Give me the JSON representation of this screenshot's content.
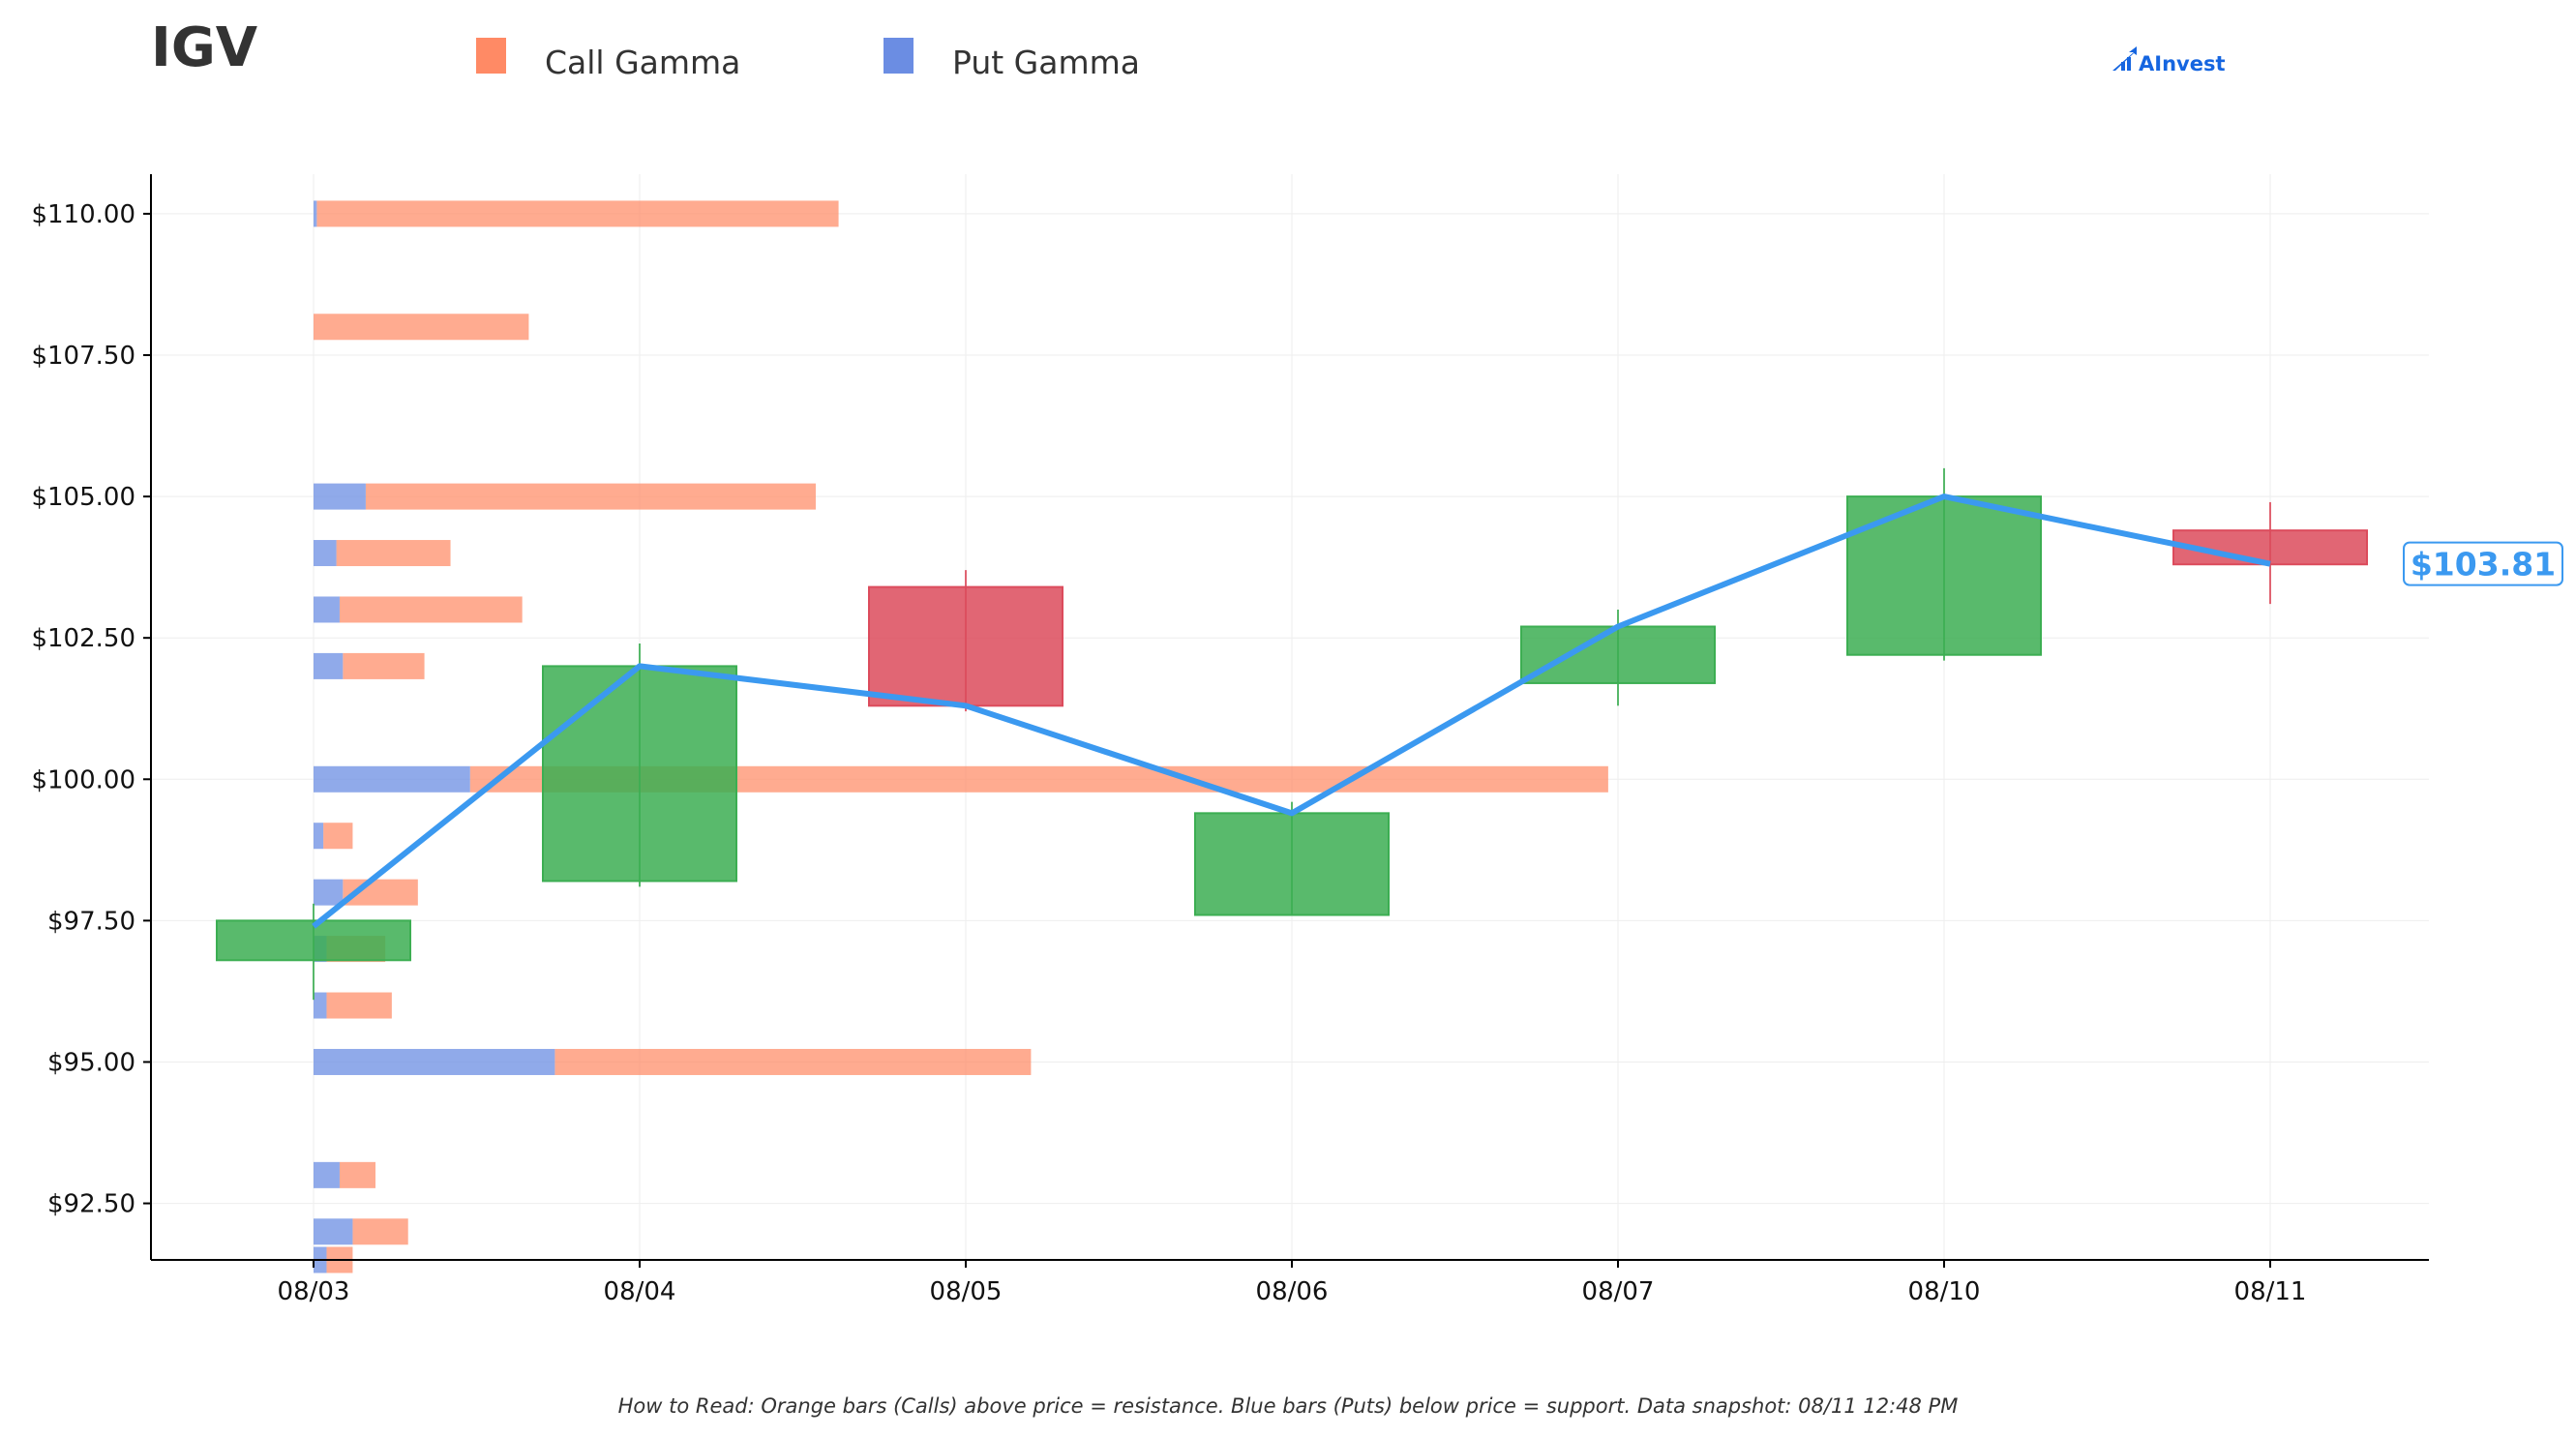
{
  "ticker": "IGV",
  "brand": "AInvest",
  "footer": "How to Read: Orange bars (Calls) above price = resistance. Blue bars (Puts) below price = support. Data snapshot: 08/11 12:48 PM",
  "colors": {
    "call": "#ff8a65",
    "put": "#6b8de3",
    "up": "#3cae52",
    "down": "#dc4b5c",
    "line": "#3b99f0",
    "brand": "#1565e0"
  },
  "chart_data": {
    "type": "candlestick",
    "legend": [
      {
        "label": "Call Gamma",
        "color": "#ff8a65"
      },
      {
        "label": "Put Gamma",
        "color": "#6b8de3"
      }
    ],
    "legend_position": "top",
    "categories": [
      "08/03",
      "08/04",
      "08/05",
      "08/06",
      "08/07",
      "08/10",
      "08/11"
    ],
    "ylim": [
      91.5,
      110.7
    ],
    "yticks": [
      {
        "value": 110,
        "label": "$110.00"
      },
      {
        "value": 107.5,
        "label": "$107.50"
      },
      {
        "value": 105,
        "label": "$105.00"
      },
      {
        "value": 102.5,
        "label": "$102.50"
      },
      {
        "value": 100,
        "label": "$100.00"
      },
      {
        "value": 97.5,
        "label": "$97.50"
      },
      {
        "value": 95,
        "label": "$95.00"
      },
      {
        "value": 92.5,
        "label": "$92.50"
      }
    ],
    "grid": true,
    "candles": [
      {
        "date": "08/03",
        "open": 96.8,
        "high": 97.8,
        "low": 96.1,
        "close": 97.5
      },
      {
        "date": "08/04",
        "open": 98.2,
        "high": 102.4,
        "low": 98.1,
        "close": 102.0
      },
      {
        "date": "08/05",
        "open": 103.4,
        "high": 103.7,
        "low": 101.2,
        "close": 101.3
      },
      {
        "date": "08/06",
        "open": 97.6,
        "high": 99.6,
        "low": 97.6,
        "close": 99.4
      },
      {
        "date": "08/07",
        "open": 101.7,
        "high": 103.0,
        "low": 101.3,
        "close": 102.7
      },
      {
        "date": "08/10",
        "open": 102.2,
        "high": 105.5,
        "low": 102.1,
        "close": 105.0
      },
      {
        "date": "08/11",
        "open": 104.4,
        "high": 104.9,
        "low": 103.1,
        "close": 103.8
      }
    ],
    "price_line": [
      {
        "date": "08/03",
        "value": 97.4
      },
      {
        "date": "08/04",
        "value": 102.0
      },
      {
        "date": "08/05",
        "value": 101.3
      },
      {
        "date": "08/06",
        "value": 99.4
      },
      {
        "date": "08/07",
        "value": 102.7
      },
      {
        "date": "08/10",
        "value": 105.0
      },
      {
        "date": "08/11",
        "value": 103.81
      }
    ],
    "current_price_label": "$103.81",
    "gamma_note": "gamma bar lengths expressed in category-spacing units starting at 08/03",
    "gamma": [
      {
        "strike": 110.0,
        "put": 0.01,
        "call": 1.6
      },
      {
        "strike": 108.0,
        "put": 0.0,
        "call": 0.66
      },
      {
        "strike": 105.0,
        "put": 0.16,
        "call": 1.38
      },
      {
        "strike": 104.0,
        "put": 0.07,
        "call": 0.35
      },
      {
        "strike": 103.0,
        "put": 0.08,
        "call": 0.56
      },
      {
        "strike": 102.0,
        "put": 0.09,
        "call": 0.25
      },
      {
        "strike": 100.0,
        "put": 0.48,
        "call": 3.49
      },
      {
        "strike": 99.0,
        "put": 0.03,
        "call": 0.09
      },
      {
        "strike": 98.0,
        "put": 0.09,
        "call": 0.23
      },
      {
        "strike": 97.0,
        "put": 0.04,
        "call": 0.18
      },
      {
        "strike": 96.0,
        "put": 0.04,
        "call": 0.2
      },
      {
        "strike": 95.0,
        "put": 0.74,
        "call": 1.46
      },
      {
        "strike": 93.0,
        "put": 0.08,
        "call": 0.11
      },
      {
        "strike": 92.0,
        "put": 0.12,
        "call": 0.17
      },
      {
        "strike": 91.5,
        "put": 0.04,
        "call": 0.08
      }
    ]
  }
}
